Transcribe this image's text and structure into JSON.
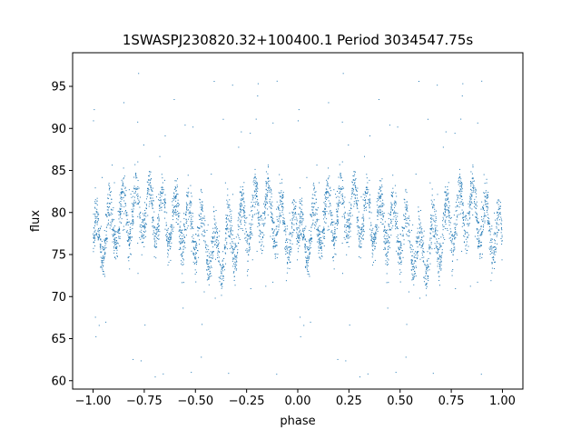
{
  "chart_data": {
    "type": "scatter",
    "title": "1SWASPJ230820.32+100400.1 Period 3034547.75s",
    "xlabel": "phase",
    "ylabel": "flux",
    "xlim": [
      -1.1,
      1.1
    ],
    "ylim": [
      59,
      99
    ],
    "xticks": [
      -1.0,
      -0.75,
      -0.5,
      -0.25,
      0.0,
      0.25,
      0.5,
      0.75,
      1.0
    ],
    "xtick_labels": [
      "−1.00",
      "−0.75",
      "−0.50",
      "−0.25",
      "0.00",
      "0.25",
      "0.50",
      "0.75",
      "1.00"
    ],
    "yticks": [
      60,
      65,
      70,
      75,
      80,
      85,
      90,
      95
    ],
    "ytick_labels": [
      "60",
      "65",
      "70",
      "75",
      "80",
      "85",
      "90",
      "95"
    ],
    "grid": false,
    "marker_color": "#1f77b4",
    "phase_folded": true,
    "light_curve_profile": {
      "phase": [
        0.0,
        0.05,
        0.1,
        0.15,
        0.2,
        0.25,
        0.3,
        0.35,
        0.4,
        0.45,
        0.5,
        0.55,
        0.6,
        0.65,
        0.7,
        0.75,
        0.8,
        0.85,
        0.9,
        0.95,
        1.0
      ],
      "flux": [
        76.5,
        77.5,
        78.5,
        79.5,
        80.0,
        80.5,
        80.0,
        79.5,
        79.0,
        78.5,
        78.0,
        76.5,
        75.0,
        76.0,
        77.5,
        79.0,
        80.0,
        80.5,
        79.5,
        78.0,
        76.5
      ],
      "scatter_range": 3.0
    }
  }
}
